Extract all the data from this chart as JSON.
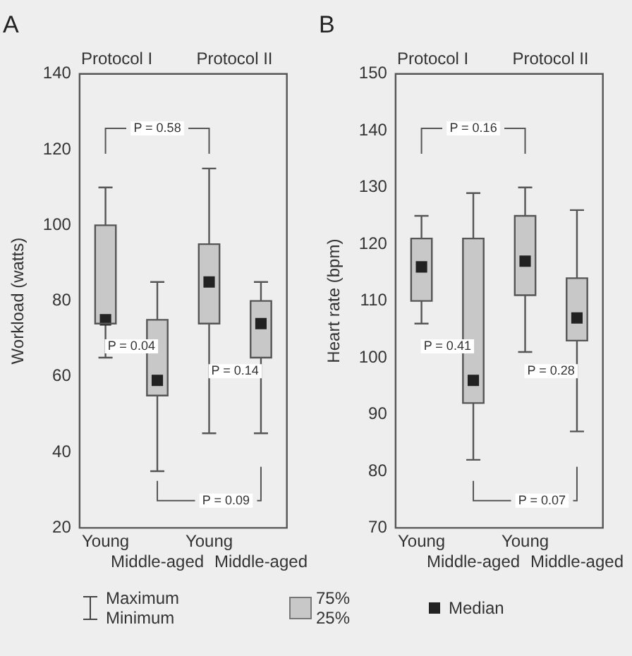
{
  "chart_data": [
    {
      "type": "box",
      "title": "A",
      "ylabel": "Workload (watts)",
      "categories": [
        "Young",
        "Middle-aged",
        "Young",
        "Middle-aged"
      ],
      "ylim": [
        20,
        140
      ],
      "yticks": [
        20,
        40,
        60,
        80,
        100,
        120,
        140
      ],
      "grid": false,
      "series": [
        {
          "color": "#c8c8c8",
          "boxes": [
            {
              "low": 65,
              "q1": 74,
              "median": 75,
              "q3": 100,
              "high": 110
            },
            {
              "low": 35,
              "q1": 55,
              "median": 59,
              "q3": 75,
              "high": 85
            },
            {
              "low": 45,
              "q1": 74,
              "median": 85,
              "q3": 95,
              "high": 115
            },
            {
              "low": 45,
              "q1": 65,
              "median": 74,
              "q3": 80,
              "high": 85
            }
          ]
        }
      ],
      "annotations": [
        "Protocol I",
        "Protocol II",
        "P = 0.58",
        "P = 0.04",
        "P = 0.14",
        "P = 0.09",
        "Maximum",
        "Minimum",
        "75%",
        "25%",
        "Median"
      ]
    },
    {
      "type": "box",
      "title": "B",
      "ylabel": "Heart rate (bpm)",
      "categories": [
        "Young",
        "Middle-aged",
        "Young",
        "Middle-aged"
      ],
      "ylim": [
        70,
        150
      ],
      "yticks": [
        70,
        80,
        90,
        100,
        110,
        120,
        130,
        140,
        150
      ],
      "grid": false,
      "series": [
        {
          "color": "#c8c8c8",
          "boxes": [
            {
              "low": 106,
              "q1": 110,
              "median": 116,
              "q3": 121,
              "high": 125
            },
            {
              "low": 82,
              "q1": 92,
              "median": 96,
              "q3": 121,
              "high": 129
            },
            {
              "low": 101,
              "q1": 111,
              "median": 117,
              "q3": 125,
              "high": 130
            },
            {
              "low": 87,
              "q1": 103,
              "median": 107,
              "q3": 114,
              "high": 126
            }
          ]
        }
      ],
      "annotations": [
        "Protocol I",
        "Protocol II",
        "P = 0.16",
        "P = 0.41",
        "P = 0.28",
        "P = 0.07"
      ]
    }
  ]
}
